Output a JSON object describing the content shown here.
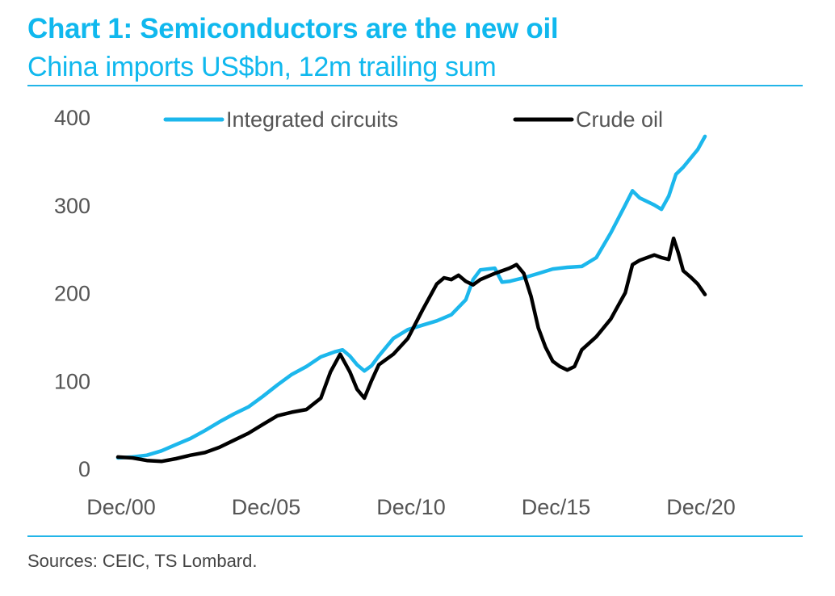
{
  "header": {
    "title": "Chart 1: Semiconductors are the new oil",
    "subtitle": "China imports US$bn, 12m trailing sum"
  },
  "footer": {
    "source": "Sources: CEIC, TS Lombard."
  },
  "chart_data": {
    "type": "line",
    "title": "Chart 1: Semiconductors are the new oil",
    "subtitle": "China imports US$bn, 12m trailing sum",
    "xlabel": "",
    "ylabel": "",
    "ylim": [
      0,
      400
    ],
    "yticks": [
      0,
      100,
      200,
      300,
      400
    ],
    "xticks": [
      "Dec/00",
      "Dec/05",
      "Dec/10",
      "Dec/15",
      "Dec/20"
    ],
    "xlim": [
      "2000-12",
      "2021-06"
    ],
    "grid": false,
    "legend_position": "top",
    "series": [
      {
        "name": "Integrated circuits",
        "color": "#1cb7ec",
        "points": [
          [
            "2000-12",
            12
          ],
          [
            "2001-06",
            13
          ],
          [
            "2001-12",
            15
          ],
          [
            "2002-06",
            20
          ],
          [
            "2002-12",
            27
          ],
          [
            "2003-06",
            34
          ],
          [
            "2003-12",
            43
          ],
          [
            "2004-06",
            53
          ],
          [
            "2004-12",
            62
          ],
          [
            "2005-06",
            70
          ],
          [
            "2005-12",
            82
          ],
          [
            "2006-06",
            95
          ],
          [
            "2006-12",
            107
          ],
          [
            "2007-06",
            116
          ],
          [
            "2007-12",
            127
          ],
          [
            "2008-06",
            133
          ],
          [
            "2008-09",
            135
          ],
          [
            "2008-12",
            128
          ],
          [
            "2009-03",
            118
          ],
          [
            "2009-06",
            111
          ],
          [
            "2009-09",
            117
          ],
          [
            "2009-12",
            128
          ],
          [
            "2010-06",
            148
          ],
          [
            "2010-12",
            158
          ],
          [
            "2011-06",
            163
          ],
          [
            "2011-12",
            168
          ],
          [
            "2012-06",
            175
          ],
          [
            "2012-12",
            192
          ],
          [
            "2013-03",
            215
          ],
          [
            "2013-06",
            226
          ],
          [
            "2013-12",
            228
          ],
          [
            "2014-03",
            212
          ],
          [
            "2014-06",
            213
          ],
          [
            "2014-12",
            217
          ],
          [
            "2015-06",
            222
          ],
          [
            "2015-12",
            227
          ],
          [
            "2016-06",
            229
          ],
          [
            "2016-12",
            230
          ],
          [
            "2017-06",
            240
          ],
          [
            "2017-12",
            268
          ],
          [
            "2018-06",
            300
          ],
          [
            "2018-09",
            316
          ],
          [
            "2018-12",
            308
          ],
          [
            "2019-06",
            300
          ],
          [
            "2019-09",
            295
          ],
          [
            "2019-12",
            310
          ],
          [
            "2020-03",
            335
          ],
          [
            "2020-06",
            343
          ],
          [
            "2020-12",
            363
          ],
          [
            "2021-03",
            378
          ]
        ]
      },
      {
        "name": "Crude oil",
        "color": "#000000",
        "points": [
          [
            "2000-12",
            13
          ],
          [
            "2001-06",
            12
          ],
          [
            "2001-12",
            9
          ],
          [
            "2002-06",
            8
          ],
          [
            "2002-12",
            11
          ],
          [
            "2003-06",
            15
          ],
          [
            "2003-12",
            18
          ],
          [
            "2004-06",
            24
          ],
          [
            "2004-12",
            32
          ],
          [
            "2005-06",
            40
          ],
          [
            "2005-12",
            50
          ],
          [
            "2006-06",
            60
          ],
          [
            "2006-12",
            64
          ],
          [
            "2007-06",
            67
          ],
          [
            "2007-12",
            80
          ],
          [
            "2008-04",
            110
          ],
          [
            "2008-08",
            130
          ],
          [
            "2008-12",
            110
          ],
          [
            "2009-03",
            90
          ],
          [
            "2009-06",
            80
          ],
          [
            "2009-09",
            100
          ],
          [
            "2009-12",
            118
          ],
          [
            "2010-06",
            130
          ],
          [
            "2010-12",
            148
          ],
          [
            "2011-06",
            180
          ],
          [
            "2011-12",
            210
          ],
          [
            "2012-03",
            217
          ],
          [
            "2012-06",
            215
          ],
          [
            "2012-09",
            220
          ],
          [
            "2012-12",
            213
          ],
          [
            "2013-03",
            209
          ],
          [
            "2013-06",
            215
          ],
          [
            "2013-12",
            222
          ],
          [
            "2014-06",
            228
          ],
          [
            "2014-09",
            232
          ],
          [
            "2014-12",
            222
          ],
          [
            "2015-03",
            196
          ],
          [
            "2015-06",
            160
          ],
          [
            "2015-09",
            138
          ],
          [
            "2015-12",
            122
          ],
          [
            "2016-03",
            116
          ],
          [
            "2016-06",
            112
          ],
          [
            "2016-09",
            116
          ],
          [
            "2016-12",
            135
          ],
          [
            "2017-06",
            150
          ],
          [
            "2017-12",
            170
          ],
          [
            "2018-06",
            200
          ],
          [
            "2018-09",
            232
          ],
          [
            "2018-12",
            237
          ],
          [
            "2019-06",
            243
          ],
          [
            "2019-09",
            240
          ],
          [
            "2019-12",
            238
          ],
          [
            "2020-02",
            262
          ],
          [
            "2020-04",
            245
          ],
          [
            "2020-06",
            225
          ],
          [
            "2020-09",
            218
          ],
          [
            "2020-12",
            210
          ],
          [
            "2021-03",
            198
          ]
        ]
      }
    ]
  }
}
